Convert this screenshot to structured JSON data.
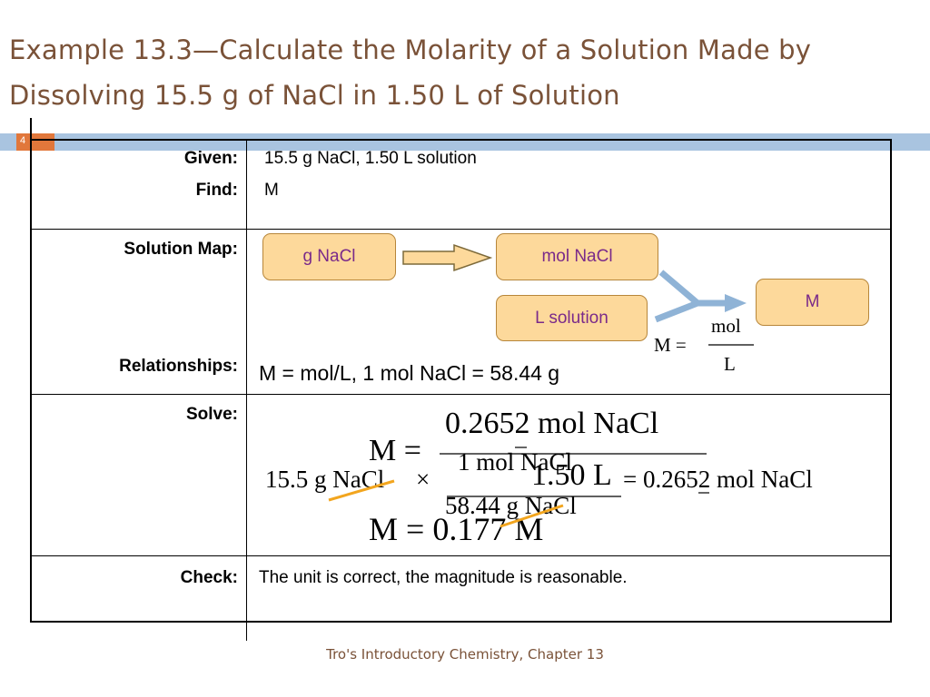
{
  "slide": {
    "title": "Example 13.3—Calculate the Molarity of a Solution Made by Dissolving 15.5 g of NaCl in 1.50 L of Solution",
    "number": "4",
    "footer": "Tro's Introductory Chemistry, Chapter 13"
  },
  "table": {
    "given_label": "Given:",
    "given_value": "15.5 g NaCl, 1.50 L solution",
    "find_label": "Find:",
    "find_value": "M",
    "solution_map_label": "Solution Map:",
    "relationships_label": "Relationships:",
    "relationships_value": "M = mol/L, 1 mol NaCl = 58.44 g",
    "solve_label": "Solve:",
    "check_label": "Check:",
    "check_value": "The unit is correct, the magnitude is reasonable."
  },
  "solution_map": {
    "box_g_nacl": "g NaCl",
    "box_mol_nacl": "mol NaCl",
    "box_l_solution": "L solution",
    "box_m": "M",
    "formula_lhs": "M =",
    "formula_num": "mol",
    "formula_den": "L"
  },
  "solve": {
    "calc_lhs": "15.5 g NaCl",
    "calc_times": "×",
    "calc_num": "1 mol NaCl",
    "calc_den": "58.44 g NaCl",
    "calc_result": "= 0.2652 mol NaCl",
    "m_eq_lhs": "M =",
    "m_eq_num": "0.2652 mol NaCl",
    "m_eq_den": "1.50 L",
    "final": "M = 0.177 M"
  },
  "colors": {
    "title": "#7a5238",
    "box_fill": "#fdd99b",
    "box_text": "#7a2a8a",
    "arrow_fill": "#fdd99b",
    "connector": "#8fb3d6",
    "strike": "#f2a51e",
    "bar": "#a9c4e0",
    "bar_accent": "#e1773b"
  }
}
